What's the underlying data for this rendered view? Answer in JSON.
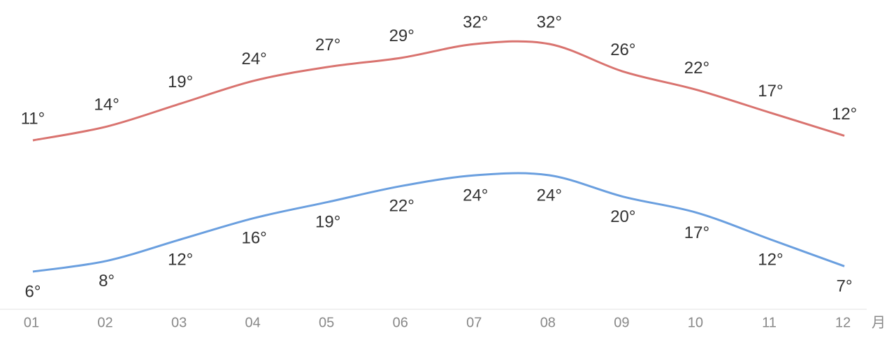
{
  "chart_data": {
    "type": "line",
    "categories": [
      "01",
      "02",
      "03",
      "04",
      "05",
      "06",
      "07",
      "08",
      "09",
      "10",
      "11",
      "12"
    ],
    "xlabel": "月",
    "series": [
      {
        "color": "#d9736f",
        "values": [
          11,
          14,
          19,
          24,
          27,
          29,
          32,
          32,
          26,
          22,
          17,
          12
        ],
        "value_labels": [
          "11°",
          "14°",
          "19°",
          "24°",
          "27°",
          "29°",
          "32°",
          "32°",
          "26°",
          "22°",
          "17°",
          "12°"
        ]
      },
      {
        "color": "#6a9fdf",
        "values": [
          6,
          8,
          12,
          16,
          19,
          22,
          24,
          24,
          20,
          17,
          12,
          7
        ],
        "value_labels": [
          "6°",
          "8°",
          "12°",
          "16°",
          "19°",
          "22°",
          "24°",
          "24°",
          "20°",
          "17°",
          "12°",
          "7°"
        ]
      }
    ]
  }
}
